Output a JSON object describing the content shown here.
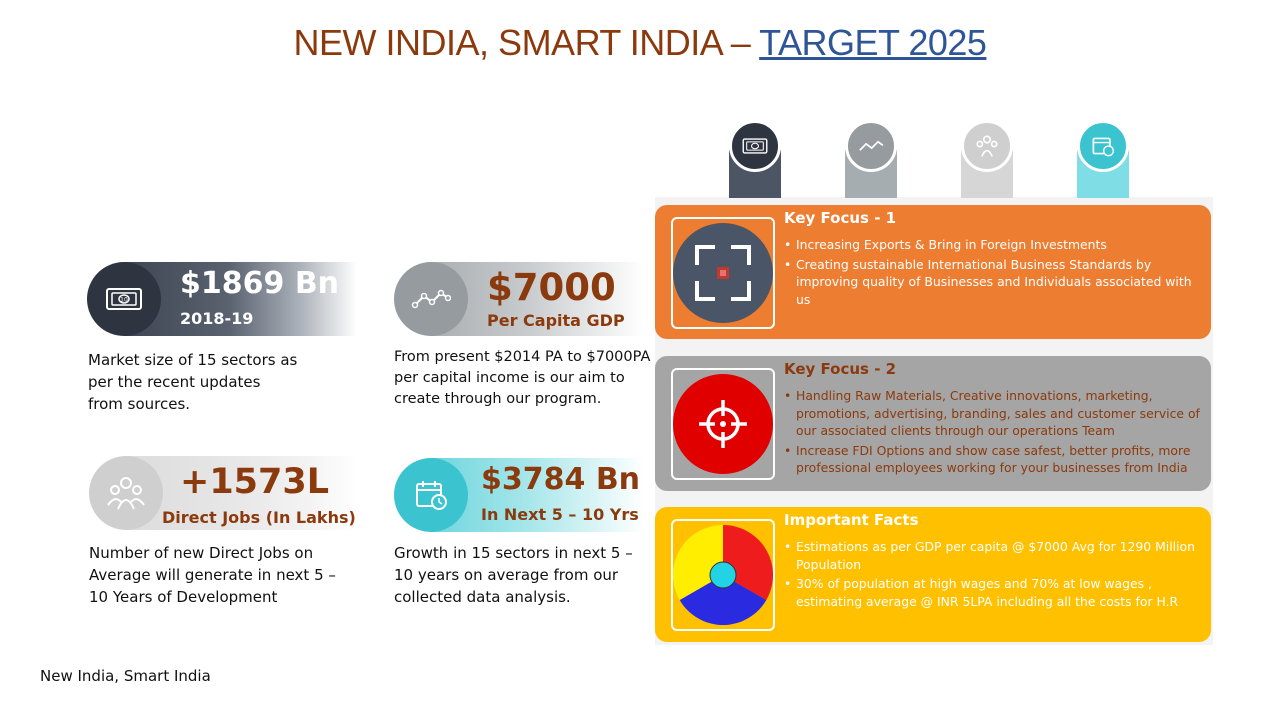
{
  "title": {
    "main": "NEW INDIA, SMART INDIA – ",
    "link": "TARGET 2025"
  },
  "stats": [
    {
      "value": "$1869 Bn",
      "label": "2018-19",
      "icon": "banknote-icon",
      "description": [
        "Market size of 15 sectors as",
        "per the recent updates",
        "from sources."
      ]
    },
    {
      "value": "$7000",
      "label": "Per Capita  GDP",
      "icon": "line-chart-icon",
      "description": [
        "From present $2014 PA to $7000PA",
        "per capital income is our aim to",
        "create through our program."
      ]
    },
    {
      "value": "+1573L",
      "label": "Direct Jobs (In Lakhs)",
      "icon": "people-icon",
      "description": [
        "Number of new Direct Jobs on",
        "Average will generate in next 5 –",
        "10 Years of Development"
      ]
    },
    {
      "value": "$3784 Bn",
      "label": "In Next 5 – 10 Yrs",
      "icon": "calendar-clock-icon",
      "description": [
        "Growth in 15 sectors in next 5 –",
        "10 years on average from our",
        "collected data analysis."
      ]
    }
  ],
  "tabs": [
    {
      "icon": "banknote-icon",
      "color": "#4b5563"
    },
    {
      "icon": "line-chart-icon",
      "color": "#a6adb0"
    },
    {
      "icon": "people-icon",
      "color": "#d6d6d6"
    },
    {
      "icon": "calendar-clock-icon",
      "color": "#7fdde6"
    }
  ],
  "focus": [
    {
      "heading": "Key Focus - 1",
      "color": "#ED7D31",
      "bullets": [
        "Increasing Exports & Bring in Foreign Investments",
        "Creating sustainable International Business Standards by improving quality of Businesses and Individuals associated with us"
      ]
    },
    {
      "heading": "Key Focus - 2",
      "color": "#A5A5A5",
      "bullets": [
        "Handling Raw Materials, Creative innovations, marketing, promotions,  advertising, branding, sales and customer service of our associated clients through our operations Team",
        "Increase FDI Options and show case safest, better profits, more professional employees working for your businesses from India"
      ]
    },
    {
      "heading": "Important Facts",
      "color": "#FFC000",
      "bullets": [
        "Estimations as per GDP per capita @ $7000 Avg  for 1290 Million Population",
        "30% of population  at high wages and 70% at low wages , estimating average @ INR 5LPA including all the costs for H.R"
      ]
    }
  ],
  "footer": "New India, Smart India"
}
